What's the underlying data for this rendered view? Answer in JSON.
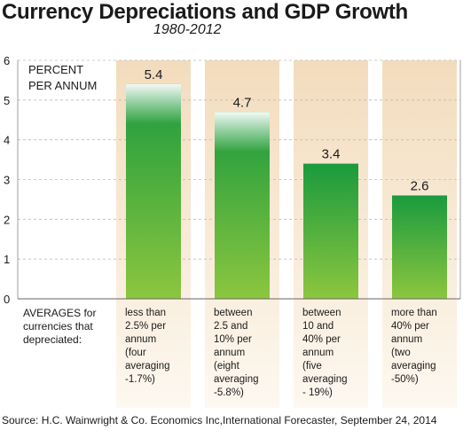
{
  "chart_data": {
    "type": "bar",
    "title": "Currency Depreciations and GDP Growth",
    "subtitle": "1980-2012",
    "ylabel_lines": [
      "PERCENT",
      "PER ANNUM"
    ],
    "ylim": [
      0,
      6
    ],
    "yticks": [
      0,
      1,
      2,
      3,
      4,
      5,
      6
    ],
    "grid": true,
    "row_label_lines": [
      "AVERAGES for",
      "currencies that",
      "depreciated:"
    ],
    "categories": [
      {
        "lines": [
          "less than",
          "2.5% per",
          "annum",
          "(four",
          "averaging",
          "-1.7%)"
        ]
      },
      {
        "lines": [
          "between",
          "2.5 and",
          "10% per",
          "annum",
          "(eight",
          "averaging",
          "-5.8%)"
        ]
      },
      {
        "lines": [
          "between",
          "10 and",
          "40% per",
          "annum",
          "(five",
          "averaging",
          "- 19%)"
        ]
      },
      {
        "lines": [
          "more than",
          "40% per",
          "annum",
          "(two",
          "averaging",
          "-50%)"
        ]
      }
    ],
    "values": [
      5.4,
      4.7,
      3.4,
      2.6
    ],
    "value_labels": [
      "5.4",
      "4.7",
      "3.4",
      "2.6"
    ],
    "colors": {
      "bar_top": "#1a9a3e",
      "bar_bottom": "#8cc63f",
      "panel_top": "#f3dcbd",
      "panel_bottom": "#fdf8f0",
      "grid": "#bdbdbd"
    }
  },
  "source": "Source: H.C. Wainwright & Co. Economics Inc,International Forecaster, September 24, 2014"
}
